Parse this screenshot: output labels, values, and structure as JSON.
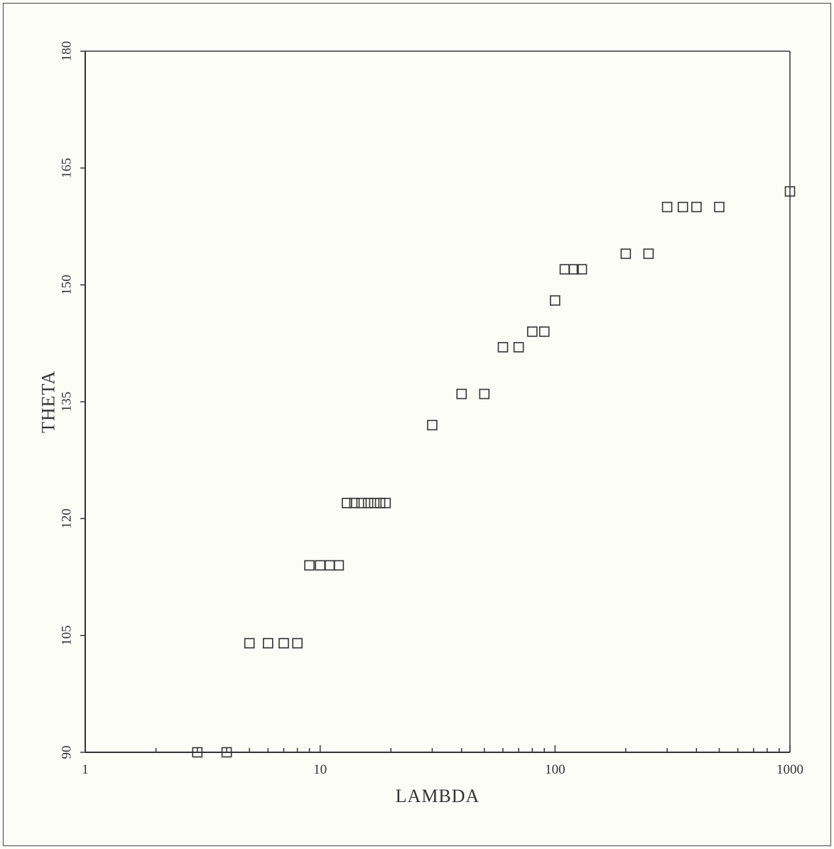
{
  "chart_data": {
    "type": "scatter",
    "title": "",
    "xlabel": "LAMBDA",
    "ylabel": "THETA",
    "x_scale": "log",
    "xlim": [
      1,
      1000
    ],
    "ylim": [
      90,
      180
    ],
    "x_ticks": [
      1,
      10,
      100,
      1000
    ],
    "x_tick_labels": [
      "1",
      "10",
      "100",
      "1000"
    ],
    "y_ticks": [
      90,
      105,
      120,
      135,
      150,
      165,
      180
    ],
    "y_tick_labels": [
      "90",
      "105",
      "120",
      "135",
      "150",
      "165",
      "180"
    ],
    "grid": false,
    "marker": "square",
    "points": [
      {
        "x": 3,
        "y": 90
      },
      {
        "x": 4,
        "y": 90
      },
      {
        "x": 5,
        "y": 104
      },
      {
        "x": 6,
        "y": 104
      },
      {
        "x": 7,
        "y": 104
      },
      {
        "x": 8,
        "y": 104
      },
      {
        "x": 9,
        "y": 114
      },
      {
        "x": 10,
        "y": 114
      },
      {
        "x": 11,
        "y": 114
      },
      {
        "x": 12,
        "y": 114
      },
      {
        "x": 13,
        "y": 122
      },
      {
        "x": 14,
        "y": 122
      },
      {
        "x": 15,
        "y": 122
      },
      {
        "x": 16,
        "y": 122
      },
      {
        "x": 17,
        "y": 122
      },
      {
        "x": 18,
        "y": 122
      },
      {
        "x": 19,
        "y": 122
      },
      {
        "x": 30,
        "y": 132
      },
      {
        "x": 40,
        "y": 136
      },
      {
        "x": 50,
        "y": 136
      },
      {
        "x": 60,
        "y": 142
      },
      {
        "x": 70,
        "y": 142
      },
      {
        "x": 80,
        "y": 144
      },
      {
        "x": 90,
        "y": 144
      },
      {
        "x": 100,
        "y": 148
      },
      {
        "x": 110,
        "y": 152
      },
      {
        "x": 120,
        "y": 152
      },
      {
        "x": 130,
        "y": 152
      },
      {
        "x": 200,
        "y": 154
      },
      {
        "x": 250,
        "y": 154
      },
      {
        "x": 300,
        "y": 160
      },
      {
        "x": 350,
        "y": 160
      },
      {
        "x": 400,
        "y": 160
      },
      {
        "x": 500,
        "y": 160
      },
      {
        "x": 1000,
        "y": 162
      }
    ]
  }
}
